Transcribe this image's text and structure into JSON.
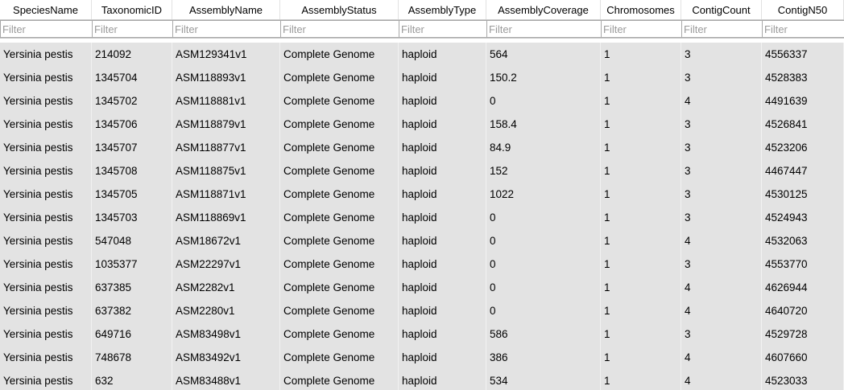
{
  "table": {
    "columns": [
      "SpeciesName",
      "TaxonomicID",
      "AssemblyName",
      "AssemblyStatus",
      "AssemblyType",
      "AssemblyCoverage",
      "Chromosomes",
      "ContigCount",
      "ContigN50"
    ],
    "filter_placeholder": "Filter",
    "rows": [
      [
        "Yersinia pestis",
        "214092",
        "ASM129341v1",
        "Complete Genome",
        "haploid",
        "564",
        "1",
        "3",
        "4556337"
      ],
      [
        "Yersinia pestis",
        "1345704",
        "ASM118893v1",
        "Complete Genome",
        "haploid",
        "150.2",
        "1",
        "3",
        "4528383"
      ],
      [
        "Yersinia pestis",
        "1345702",
        "ASM118881v1",
        "Complete Genome",
        "haploid",
        "0",
        "1",
        "4",
        "4491639"
      ],
      [
        "Yersinia pestis",
        "1345706",
        "ASM118879v1",
        "Complete Genome",
        "haploid",
        "158.4",
        "1",
        "3",
        "4526841"
      ],
      [
        "Yersinia pestis",
        "1345707",
        "ASM118877v1",
        "Complete Genome",
        "haploid",
        "84.9",
        "1",
        "3",
        "4523206"
      ],
      [
        "Yersinia pestis",
        "1345708",
        "ASM118875v1",
        "Complete Genome",
        "haploid",
        "152",
        "1",
        "3",
        "4467447"
      ],
      [
        "Yersinia pestis",
        "1345705",
        "ASM118871v1",
        "Complete Genome",
        "haploid",
        "1022",
        "1",
        "3",
        "4530125"
      ],
      [
        "Yersinia pestis",
        "1345703",
        "ASM118869v1",
        "Complete Genome",
        "haploid",
        "0",
        "1",
        "3",
        "4524943"
      ],
      [
        "Yersinia pestis",
        "547048",
        "ASM18672v1",
        "Complete Genome",
        "haploid",
        "0",
        "1",
        "4",
        "4532063"
      ],
      [
        "Yersinia pestis",
        "1035377",
        "ASM22297v1",
        "Complete Genome",
        "haploid",
        "0",
        "1",
        "3",
        "4553770"
      ],
      [
        "Yersinia pestis",
        "637385",
        "ASM2282v1",
        "Complete Genome",
        "haploid",
        "0",
        "1",
        "4",
        "4626944"
      ],
      [
        "Yersinia pestis",
        "637382",
        "ASM2280v1",
        "Complete Genome",
        "haploid",
        "0",
        "1",
        "4",
        "4640720"
      ],
      [
        "Yersinia pestis",
        "649716",
        "ASM83498v1",
        "Complete Genome",
        "haploid",
        "586",
        "1",
        "3",
        "4529728"
      ],
      [
        "Yersinia pestis",
        "748678",
        "ASM83492v1",
        "Complete Genome",
        "haploid",
        "386",
        "1",
        "4",
        "4607660"
      ],
      [
        "Yersinia pestis",
        "632",
        "ASM83488v1",
        "Complete Genome",
        "haploid",
        "534",
        "1",
        "4",
        "4523033"
      ]
    ]
  },
  "colors": {
    "row_background": "#e3e3e3",
    "header_background": "#ffffff",
    "filter_border": "#a8a8a8"
  }
}
